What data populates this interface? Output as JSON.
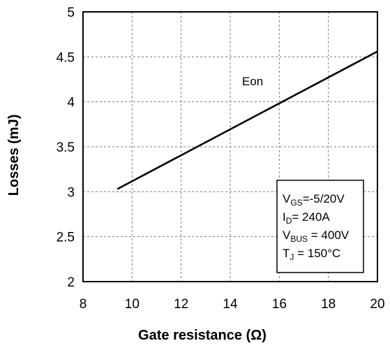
{
  "chart_data": {
    "type": "line",
    "xlabel": "Gate resistance (Ω)",
    "ylabel": "Losses (mJ)",
    "xlim": [
      8,
      20
    ],
    "ylim": [
      2,
      5
    ],
    "xticks": [
      "8",
      "10",
      "12",
      "14",
      "16",
      "18",
      "20"
    ],
    "yticks": [
      "2",
      "2.5",
      "3",
      "3.5",
      "4",
      "4.5",
      "5"
    ],
    "grid": true,
    "series": [
      {
        "name": "Eon",
        "color": "#000000",
        "x": [
          9.4,
          20
        ],
        "y": [
          3.03,
          4.56
        ]
      }
    ],
    "conditions": {
      "vgs": {
        "symbol": "V",
        "sub": "GS",
        "text": "=-5/20V"
      },
      "id": {
        "symbol": "I",
        "sub": "D",
        "text": "= 240A"
      },
      "vbus": {
        "symbol": "V",
        "sub": "BUS",
        "text": " = 400V"
      },
      "tj": {
        "symbol": "T",
        "sub": "J",
        "text": " = 150°C"
      }
    }
  }
}
